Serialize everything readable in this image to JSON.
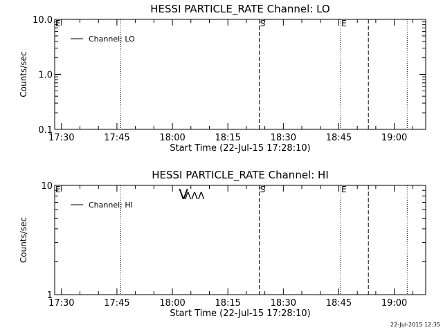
{
  "footer": {
    "timestamp": "22-Jul-2015 12:35"
  },
  "chart_data": [
    {
      "type": "line",
      "title": "HESSI PARTICLE_RATE Channel: LO",
      "xlabel": "Start Time (22-Jul-15 17:28:10)",
      "ylabel": "Counts/sec",
      "x_tick_labels": [
        "17:30",
        "17:45",
        "18:00",
        "18:15",
        "18:30",
        "18:45",
        "19:00"
      ],
      "x_range": [
        "17:28:10",
        "19:08:30"
      ],
      "y_scale": "log",
      "y_range": [
        0.1,
        10.0
      ],
      "y_tick_labels": [
        "0.1",
        "1.0",
        "10.0"
      ],
      "legend": {
        "placement": "top-left",
        "entries": [
          "Channel: LO"
        ]
      },
      "series": [
        {
          "name": "Channel: LO",
          "values": []
        }
      ],
      "markers": [
        {
          "time": "17:28:30",
          "style": "none",
          "label": "E"
        },
        {
          "time": "17:46:00",
          "style": "dotted",
          "label": ""
        },
        {
          "time": "18:23:30",
          "style": "dashed",
          "label": "S"
        },
        {
          "time": "18:45:30",
          "style": "dotted",
          "label": "E"
        },
        {
          "time": "18:53:00",
          "style": "dashed",
          "label": ""
        },
        {
          "time": "19:03:30",
          "style": "dotted",
          "label": ""
        }
      ],
      "annotations": []
    },
    {
      "type": "line",
      "title": "HESSI PARTICLE_RATE Channel: HI",
      "xlabel": "Start Time (22-Jul-15 17:28:10)",
      "ylabel": "Counts/sec",
      "x_tick_labels": [
        "17:30",
        "17:45",
        "18:00",
        "18:15",
        "18:30",
        "18:45",
        "19:00"
      ],
      "x_range": [
        "17:28:10",
        "19:08:30"
      ],
      "y_scale": "log",
      "y_range": [
        1,
        10
      ],
      "y_tick_labels": [
        "1",
        "10"
      ],
      "legend": {
        "placement": "top-left",
        "entries": [
          "Channel: HI"
        ]
      },
      "series": [
        {
          "name": "Channel: HI",
          "values": []
        }
      ],
      "markers": [
        {
          "time": "17:28:30",
          "style": "none",
          "label": "E"
        },
        {
          "time": "17:46:00",
          "style": "dotted",
          "label": ""
        },
        {
          "time": "18:23:30",
          "style": "dashed",
          "label": "S"
        },
        {
          "time": "18:45:30",
          "style": "dotted",
          "label": "E"
        },
        {
          "time": "18:53:00",
          "style": "dashed",
          "label": ""
        },
        {
          "time": "19:03:30",
          "style": "dotted",
          "label": ""
        }
      ],
      "annotations": [
        {
          "time": "18:03:00",
          "text": "V"
        },
        {
          "time": "18:06:00",
          "text": "ΛΛΛ"
        }
      ]
    }
  ]
}
